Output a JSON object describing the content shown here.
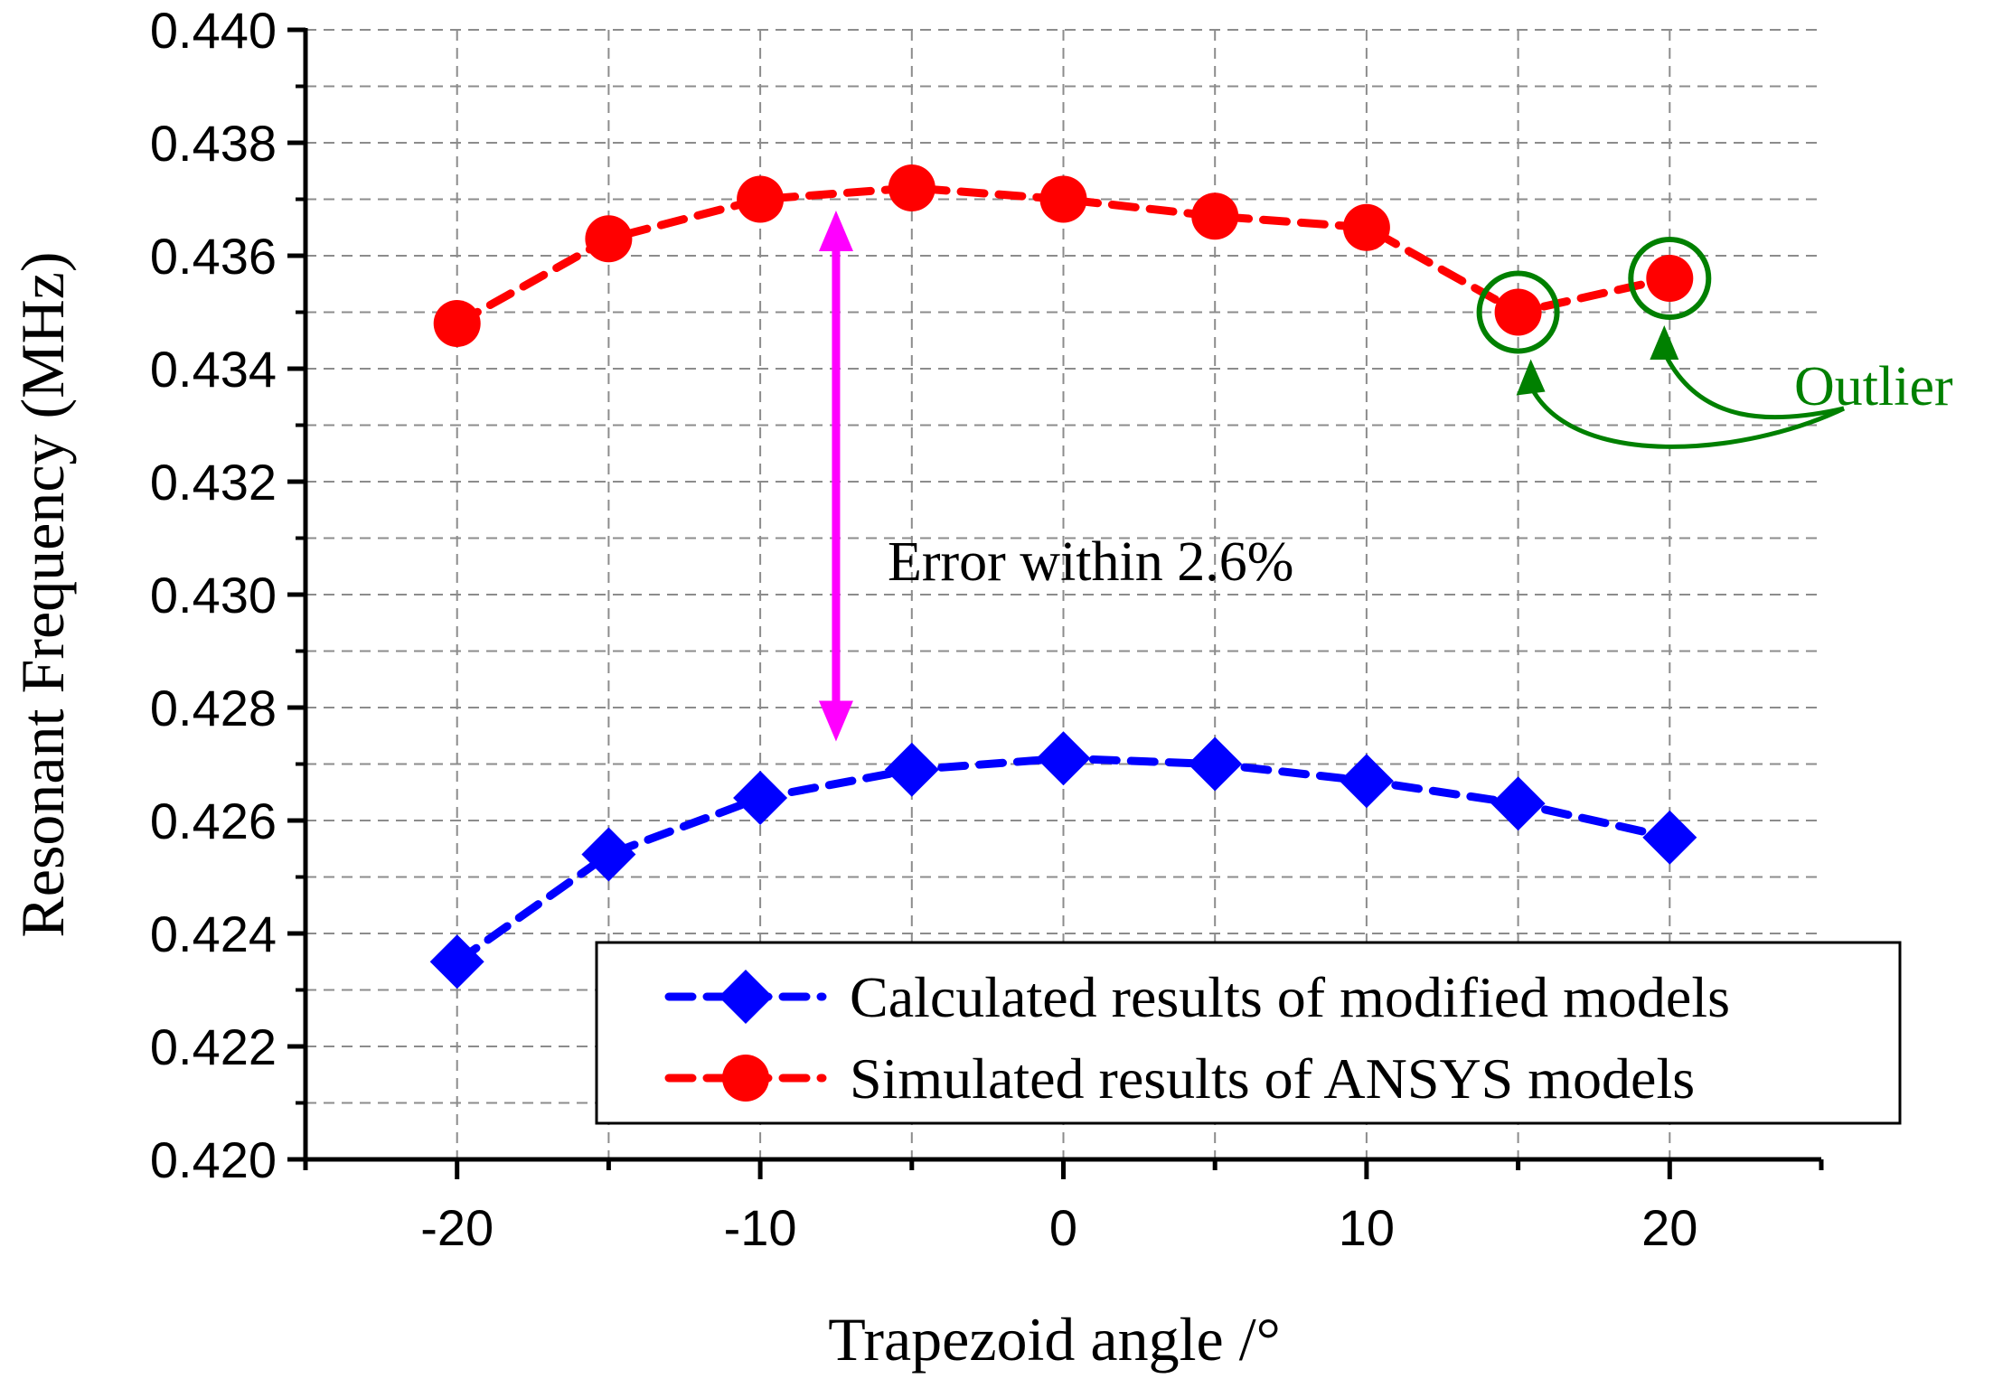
{
  "chart_data": {
    "type": "line",
    "title": "",
    "xlabel": "Trapezoid angle /°",
    "ylabel": "Resonant Frequency (MHz)",
    "xlim": [
      -25,
      25
    ],
    "ylim": [
      0.42,
      0.44
    ],
    "x": [
      -20,
      -15,
      -10,
      -5,
      0,
      5,
      10,
      15,
      20
    ],
    "x_ticks": [
      -20,
      -10,
      0,
      10,
      20
    ],
    "x_tick_labels": [
      "-20",
      "-10",
      "0",
      "10",
      "20"
    ],
    "y_ticks": [
      0.42,
      0.422,
      0.424,
      0.426,
      0.428,
      0.43,
      0.432,
      0.434,
      0.436,
      0.438,
      0.44
    ],
    "y_tick_labels": [
      "0.420",
      "0.422",
      "0.424",
      "0.426",
      "0.428",
      "0.430",
      "0.432",
      "0.434",
      "0.436",
      "0.438",
      "0.440"
    ],
    "grid": true,
    "legend_position": "bottom-right",
    "series": [
      {
        "name": "Calculated results of modified models",
        "color": "#0000ff",
        "marker": "diamond",
        "values": [
          0.4235,
          0.4254,
          0.4264,
          0.4269,
          0.4271,
          0.427,
          0.4267,
          0.4263,
          0.4257
        ]
      },
      {
        "name": "Simulated results of ANSYS models",
        "color": "#ff0000",
        "marker": "circle",
        "values": [
          0.4348,
          0.4363,
          0.437,
          0.4372,
          0.437,
          0.4367,
          0.4365,
          0.435,
          0.4356
        ]
      }
    ],
    "annotations": {
      "error": {
        "text": "Error within 2.6%",
        "color": "#ff00ff",
        "arrow_x": -7.5,
        "arrow_y_top": 0.4368,
        "arrow_y_bottom": 0.4274
      },
      "outlier": {
        "text": "Outlier",
        "color": "#008000",
        "point_indices": [
          7,
          8
        ]
      }
    }
  }
}
